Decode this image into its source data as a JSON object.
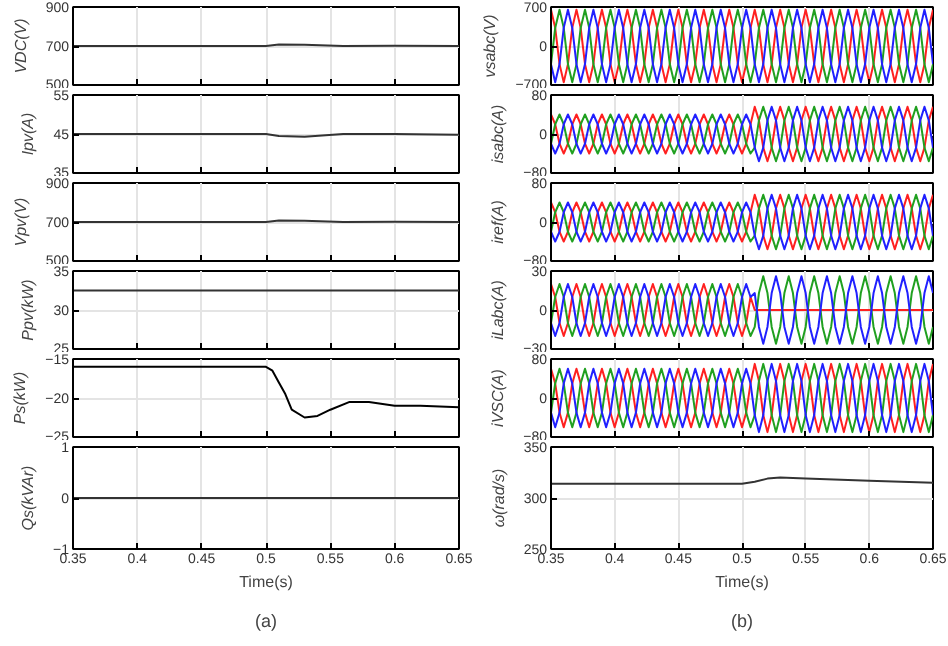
{
  "chart_data": [
    {
      "type": "line",
      "ylabel": "VDC(V)",
      "xlim": [
        0.35,
        0.65
      ],
      "xticks": [
        0.35,
        0.4,
        0.45,
        0.5,
        0.55,
        0.6,
        0.65
      ],
      "ylim": [
        500,
        900
      ],
      "yticks": [
        500,
        700,
        900
      ],
      "grid": true,
      "tick_labels": "y",
      "x": [
        0.35,
        0.5,
        0.51,
        0.53,
        0.56,
        0.6,
        0.65
      ],
      "series": [
        {
          "color": "#333333",
          "values": [
            700,
            700,
            708,
            706,
            700,
            701,
            700
          ]
        }
      ]
    },
    {
      "type": "line",
      "ylabel": "Ipv(A)",
      "xlim": [
        0.35,
        0.65
      ],
      "xticks": [
        0.35,
        0.4,
        0.45,
        0.5,
        0.55,
        0.6,
        0.65
      ],
      "ylim": [
        35,
        55
      ],
      "yticks": [
        35,
        45,
        55
      ],
      "grid": true,
      "tick_labels": "y",
      "x": [
        0.35,
        0.5,
        0.51,
        0.53,
        0.56,
        0.6,
        0.65
      ],
      "series": [
        {
          "color": "#333333",
          "values": [
            45,
            45,
            44.5,
            44.3,
            45,
            45,
            44.8
          ]
        }
      ]
    },
    {
      "type": "line",
      "ylabel": "Vpv(V)",
      "xlim": [
        0.35,
        0.65
      ],
      "xticks": [
        0.35,
        0.4,
        0.45,
        0.5,
        0.55,
        0.6,
        0.65
      ],
      "ylim": [
        500,
        900
      ],
      "yticks": [
        500,
        700,
        900
      ],
      "grid": true,
      "tick_labels": "y",
      "x": [
        0.35,
        0.5,
        0.51,
        0.53,
        0.56,
        0.6,
        0.65
      ],
      "series": [
        {
          "color": "#333333",
          "values": [
            700,
            700,
            708,
            706,
            700,
            701,
            700
          ]
        }
      ]
    },
    {
      "type": "line",
      "ylabel": "Ppv(kW)",
      "xlim": [
        0.35,
        0.65
      ],
      "xticks": [
        0.35,
        0.4,
        0.45,
        0.5,
        0.55,
        0.6,
        0.65
      ],
      "ylim": [
        25,
        35
      ],
      "yticks": [
        25,
        30,
        35
      ],
      "grid": true,
      "tick_labels": "y",
      "x": [
        0.35,
        0.65
      ],
      "series": [
        {
          "color": "#333333",
          "values": [
            32.5,
            32.5
          ]
        }
      ]
    },
    {
      "type": "line",
      "ylabel": "Ps(kW)",
      "xlim": [
        0.35,
        0.65
      ],
      "xticks": [
        0.35,
        0.4,
        0.45,
        0.5,
        0.55,
        0.6,
        0.65
      ],
      "ylim": [
        -25,
        -15
      ],
      "yticks": [
        -25,
        -20,
        -15
      ],
      "grid": true,
      "tick_labels": "y",
      "x": [
        0.35,
        0.5,
        0.505,
        0.51,
        0.515,
        0.52,
        0.53,
        0.54,
        0.55,
        0.565,
        0.58,
        0.6,
        0.62,
        0.65
      ],
      "series": [
        {
          "color": "#000000",
          "values": [
            -16,
            -16,
            -16.5,
            -18,
            -19.5,
            -21.5,
            -22.5,
            -22.3,
            -21.5,
            -20.5,
            -20.5,
            -21,
            -21,
            -21.2
          ]
        }
      ]
    },
    {
      "type": "line",
      "ylabel": "Qs(kVAr)",
      "xlabel": "Time(s)",
      "annotations": [
        "(a)"
      ],
      "xlim": [
        0.35,
        0.65
      ],
      "xticks": [
        0.35,
        0.4,
        0.45,
        0.5,
        0.55,
        0.6,
        0.65
      ],
      "ylim": [
        -1,
        1
      ],
      "yticks": [
        -1,
        0,
        1
      ],
      "grid": true,
      "x": [
        0.35,
        0.65
      ],
      "series": [
        {
          "color": "#333333",
          "values": [
            0,
            0
          ]
        }
      ]
    },
    {
      "type": "line",
      "ylabel": "vsabc(V)",
      "xlim": [
        0.35,
        0.65
      ],
      "xticks": [
        0.35,
        0.4,
        0.45,
        0.5,
        0.55,
        0.6,
        0.65
      ],
      "ylim": [
        -700,
        700
      ],
      "yticks": [
        -700,
        0,
        700
      ],
      "grid": true,
      "tick_labels": "y",
      "x": [
        0.35,
        0.3533,
        0.3567,
        0.36,
        0.3633,
        0.3667,
        0.37,
        0.3733,
        0.3767,
        0.38,
        0.3833,
        0.3867,
        0.39,
        0.3933,
        0.3967,
        0.4,
        0.4033,
        0.4067,
        0.41,
        0.4133,
        0.4167,
        0.42,
        0.4233,
        0.4267,
        0.43,
        0.4333,
        0.4367,
        0.44,
        0.4433,
        0.4467,
        0.45,
        0.4533,
        0.4567,
        0.46,
        0.4633,
        0.4667,
        0.47,
        0.4733,
        0.4767,
        0.48,
        0.4833,
        0.4867,
        0.49,
        0.4933,
        0.4967,
        0.5,
        0.5033,
        0.5067,
        0.51,
        0.5133,
        0.5167,
        0.52,
        0.5233,
        0.5267,
        0.53,
        0.5333,
        0.5367,
        0.54,
        0.5433,
        0.5467,
        0.55,
        0.5533,
        0.5567,
        0.56,
        0.5633,
        0.5667,
        0.57,
        0.5733,
        0.5767,
        0.58,
        0.5833,
        0.5867,
        0.59,
        0.5933,
        0.5967,
        0.6,
        0.6033,
        0.6067,
        0.61,
        0.6133,
        0.6167,
        0.62,
        0.6233,
        0.6267,
        0.63,
        0.6333,
        0.6367,
        0.64,
        0.6433,
        0.6467,
        0.65
      ],
      "series": [
        {
          "color": "#ff2020",
          "values": [
            650,
            325,
            -325,
            -650,
            -325,
            325,
            650,
            325,
            -325,
            -650,
            -325,
            325,
            650,
            325,
            -325,
            -650,
            -325,
            325,
            650,
            325,
            -325,
            -650,
            -325,
            325,
            650,
            325,
            -325,
            -650,
            -325,
            325,
            650,
            325,
            -325,
            -650,
            -325,
            325,
            650,
            325,
            -325,
            -650,
            -325,
            325,
            650,
            325,
            -325,
            -650,
            -325,
            325,
            650,
            325,
            -325,
            -650,
            -325,
            325,
            650,
            325,
            -325,
            -650,
            -325,
            325,
            650,
            325,
            -325,
            -650,
            -325,
            325,
            650,
            325,
            -325,
            -650,
            -325,
            325,
            650,
            325,
            -325,
            -650,
            -325,
            325,
            650,
            325,
            -325,
            -650,
            -325,
            325,
            650,
            325,
            -325,
            -650,
            -325,
            325,
            650
          ]
        },
        {
          "color": "#20a020",
          "values": [
            -325,
            325,
            650,
            325,
            -325,
            -650,
            -325,
            325,
            650,
            325,
            -325,
            -650,
            -325,
            325,
            650,
            325,
            -325,
            -650,
            -325,
            325,
            650,
            325,
            -325,
            -650,
            -325,
            325,
            650,
            325,
            -325,
            -650,
            -325,
            325,
            650,
            325,
            -325,
            -650,
            -325,
            325,
            650,
            325,
            -325,
            -650,
            -325,
            325,
            650,
            325,
            -325,
            -650,
            -325,
            325,
            650,
            325,
            -325,
            -650,
            -325,
            325,
            650,
            325,
            -325,
            -650,
            -325,
            325,
            650,
            325,
            -325,
            -650,
            -325,
            325,
            650,
            325,
            -325,
            -650,
            -325,
            325,
            650,
            325,
            -325,
            -650,
            -325,
            325,
            650,
            325,
            -325,
            -650,
            -325,
            325,
            650,
            325,
            -325,
            -650,
            -325
          ]
        },
        {
          "color": "#2020ff",
          "values": [
            -325,
            -650,
            -325,
            325,
            650,
            325,
            -325,
            -650,
            -325,
            325,
            650,
            325,
            -325,
            -650,
            -325,
            325,
            650,
            325,
            -325,
            -650,
            -325,
            325,
            650,
            325,
            -325,
            -650,
            -325,
            325,
            650,
            325,
            -325,
            -650,
            -325,
            325,
            650,
            325,
            -325,
            -650,
            -325,
            325,
            650,
            325,
            -325,
            -650,
            -325,
            325,
            650,
            325,
            -325,
            -650,
            -325,
            325,
            650,
            325,
            -325,
            -650,
            -325,
            325,
            650,
            325,
            -325,
            -650,
            -325,
            325,
            650,
            325,
            -325,
            -650,
            -325,
            325,
            650,
            325,
            -325,
            -650,
            -325,
            325,
            650,
            325,
            -325,
            -650,
            -325,
            325,
            650,
            325,
            -325,
            -650,
            -325,
            325,
            650,
            325,
            -325
          ]
        }
      ]
    },
    {
      "type": "line",
      "ylabel": "isabc(A)",
      "xlim": [
        0.35,
        0.65
      ],
      "xticks": [
        0.35,
        0.4,
        0.45,
        0.5,
        0.55,
        0.6,
        0.65
      ],
      "ylim": [
        -80,
        80
      ],
      "yticks": [
        -80,
        0,
        80
      ],
      "grid": true,
      "tick_labels": "y",
      "x": [
        0.35,
        0.3533,
        0.3567,
        0.36,
        0.3633,
        0.3667,
        0.37,
        0.3733,
        0.3767,
        0.38,
        0.3833,
        0.3867,
        0.39,
        0.3933,
        0.3967,
        0.4,
        0.4033,
        0.4067,
        0.41,
        0.4133,
        0.4167,
        0.42,
        0.4233,
        0.4267,
        0.43,
        0.4333,
        0.4367,
        0.44,
        0.4433,
        0.4467,
        0.45,
        0.4533,
        0.4567,
        0.46,
        0.4633,
        0.4667,
        0.47,
        0.4733,
        0.4767,
        0.48,
        0.4833,
        0.4867,
        0.49,
        0.4933,
        0.4967,
        0.5,
        0.5033,
        0.5067,
        0.51,
        0.5133,
        0.5167,
        0.52,
        0.5233,
        0.5267,
        0.53,
        0.5333,
        0.5367,
        0.54,
        0.5433,
        0.5467,
        0.55,
        0.5533,
        0.5567,
        0.56,
        0.5633,
        0.5667,
        0.57,
        0.5733,
        0.5767,
        0.58,
        0.5833,
        0.5867,
        0.59,
        0.5933,
        0.5967,
        0.6,
        0.6033,
        0.6067,
        0.61,
        0.6133,
        0.6167,
        0.62,
        0.6233,
        0.6267,
        0.63,
        0.6333,
        0.6367,
        0.64,
        0.6433,
        0.6467,
        0.65
      ],
      "series": [
        {
          "color": "#ff2020",
          "values": [
            40,
            20,
            -20,
            -40,
            -20,
            20,
            40,
            20,
            -20,
            -40,
            -20,
            20,
            40,
            20,
            -20,
            -40,
            -20,
            20,
            40,
            20,
            -20,
            -40,
            -20,
            20,
            40,
            20,
            -20,
            -40,
            -20,
            20,
            40,
            20,
            -20,
            -40,
            -20,
            20,
            40,
            20,
            -20,
            -40,
            -20,
            20,
            40,
            20,
            -20,
            -40,
            -20,
            20,
            56,
            28,
            -28,
            -56,
            -28,
            28,
            56,
            28,
            -28,
            -56,
            -28,
            28,
            56,
            28,
            -28,
            -56,
            -28,
            28,
            56,
            28,
            -28,
            -56,
            -28,
            28,
            56,
            28,
            -28,
            -56,
            -28,
            28,
            56,
            28,
            -28,
            -56,
            -28,
            28,
            56,
            28,
            -28,
            -56,
            -28,
            28,
            56
          ]
        },
        {
          "color": "#20a020",
          "values": [
            -20,
            20,
            40,
            20,
            -20,
            -40,
            -20,
            20,
            40,
            20,
            -20,
            -40,
            -20,
            20,
            40,
            20,
            -20,
            -40,
            -20,
            20,
            40,
            20,
            -20,
            -40,
            -20,
            20,
            40,
            20,
            -20,
            -40,
            -20,
            20,
            40,
            20,
            -20,
            -40,
            -20,
            20,
            40,
            20,
            -20,
            -40,
            -20,
            20,
            40,
            20,
            -20,
            -40,
            -28,
            28,
            56,
            28,
            -28,
            -56,
            -28,
            28,
            56,
            28,
            -28,
            -56,
            -28,
            28,
            56,
            28,
            -28,
            -56,
            -28,
            28,
            56,
            28,
            -28,
            -56,
            -28,
            28,
            56,
            28,
            -28,
            -56,
            -28,
            28,
            56,
            28,
            -28,
            -56,
            -28,
            28,
            56,
            28,
            -28,
            -56,
            -28
          ]
        },
        {
          "color": "#2020ff",
          "values": [
            -20,
            -40,
            -20,
            20,
            40,
            20,
            -20,
            -40,
            -20,
            20,
            40,
            20,
            -20,
            -40,
            -20,
            20,
            40,
            20,
            -20,
            -40,
            -20,
            20,
            40,
            20,
            -20,
            -40,
            -20,
            20,
            40,
            20,
            -20,
            -40,
            -20,
            20,
            40,
            20,
            -20,
            -40,
            -20,
            20,
            40,
            20,
            -20,
            -40,
            -20,
            20,
            40,
            20,
            -28,
            -56,
            -28,
            28,
            56,
            28,
            -28,
            -56,
            -28,
            28,
            56,
            28,
            -28,
            -56,
            -28,
            28,
            56,
            28,
            -28,
            -56,
            -28,
            28,
            56,
            28,
            -28,
            -56,
            -28,
            28,
            56,
            28,
            -28,
            -56,
            -28,
            28,
            56,
            28,
            -28,
            -56,
            -28,
            28,
            56,
            28,
            -28
          ]
        }
      ]
    },
    {
      "type": "line",
      "ylabel": "iref(A)",
      "xlim": [
        0.35,
        0.65
      ],
      "xticks": [
        0.35,
        0.4,
        0.45,
        0.5,
        0.55,
        0.6,
        0.65
      ],
      "ylim": [
        -80,
        80
      ],
      "yticks": [
        -80,
        0,
        80
      ],
      "grid": true,
      "tick_labels": "y",
      "x": [
        0.35,
        0.3533,
        0.3567,
        0.36,
        0.3633,
        0.3667,
        0.37,
        0.3733,
        0.3767,
        0.38,
        0.3833,
        0.3867,
        0.39,
        0.3933,
        0.3967,
        0.4,
        0.4033,
        0.4067,
        0.41,
        0.4133,
        0.4167,
        0.42,
        0.4233,
        0.4267,
        0.43,
        0.4333,
        0.4367,
        0.44,
        0.4433,
        0.4467,
        0.45,
        0.4533,
        0.4567,
        0.46,
        0.4633,
        0.4667,
        0.47,
        0.4733,
        0.4767,
        0.48,
        0.4833,
        0.4867,
        0.49,
        0.4933,
        0.4967,
        0.5,
        0.5033,
        0.5067,
        0.51,
        0.5133,
        0.5167,
        0.52,
        0.5233,
        0.5267,
        0.53,
        0.5333,
        0.5367,
        0.54,
        0.5433,
        0.5467,
        0.55,
        0.5533,
        0.5567,
        0.56,
        0.5633,
        0.5667,
        0.57,
        0.5733,
        0.5767,
        0.58,
        0.5833,
        0.5867,
        0.59,
        0.5933,
        0.5967,
        0.6,
        0.6033,
        0.6067,
        0.61,
        0.6133,
        0.6167,
        0.62,
        0.6233,
        0.6267,
        0.63,
        0.6333,
        0.6367,
        0.64,
        0.6433,
        0.6467,
        0.65
      ],
      "series": [
        {
          "color": "#ff2020",
          "values": [
            40,
            20,
            -20,
            -40,
            -20,
            20,
            40,
            20,
            -20,
            -40,
            -20,
            20,
            40,
            20,
            -20,
            -40,
            -20,
            20,
            40,
            20,
            -20,
            -40,
            -20,
            20,
            40,
            20,
            -20,
            -40,
            -20,
            20,
            40,
            20,
            -20,
            -40,
            -20,
            20,
            40,
            20,
            -20,
            -40,
            -20,
            20,
            40,
            20,
            -20,
            -40,
            -20,
            20,
            56,
            28,
            -28,
            -56,
            -28,
            28,
            56,
            28,
            -28,
            -56,
            -28,
            28,
            56,
            28,
            -28,
            -56,
            -28,
            28,
            56,
            28,
            -28,
            -56,
            -28,
            28,
            56,
            28,
            -28,
            -56,
            -28,
            28,
            56,
            28,
            -28,
            -56,
            -28,
            28,
            56,
            28,
            -28,
            -56,
            -28,
            28,
            56
          ]
        },
        {
          "color": "#20a020",
          "values": [
            -20,
            20,
            40,
            20,
            -20,
            -40,
            -20,
            20,
            40,
            20,
            -20,
            -40,
            -20,
            20,
            40,
            20,
            -20,
            -40,
            -20,
            20,
            40,
            20,
            -20,
            -40,
            -20,
            20,
            40,
            20,
            -20,
            -40,
            -20,
            20,
            40,
            20,
            -20,
            -40,
            -20,
            20,
            40,
            20,
            -20,
            -40,
            -20,
            20,
            40,
            20,
            -20,
            -40,
            -28,
            28,
            56,
            28,
            -28,
            -56,
            -28,
            28,
            56,
            28,
            -28,
            -56,
            -28,
            28,
            56,
            28,
            -28,
            -56,
            -28,
            28,
            56,
            28,
            -28,
            -56,
            -28,
            28,
            56,
            28,
            -28,
            -56,
            -28,
            28,
            56,
            28,
            -28,
            -56,
            -28,
            28,
            56,
            28,
            -28,
            -56,
            -28
          ]
        },
        {
          "color": "#2020ff",
          "values": [
            -20,
            -40,
            -20,
            20,
            40,
            20,
            -20,
            -40,
            -20,
            20,
            40,
            20,
            -20,
            -40,
            -20,
            20,
            40,
            20,
            -20,
            -40,
            -20,
            20,
            40,
            20,
            -20,
            -40,
            -20,
            20,
            40,
            20,
            -20,
            -40,
            -20,
            20,
            40,
            20,
            -20,
            -40,
            -20,
            20,
            40,
            20,
            -20,
            -40,
            -20,
            20,
            40,
            20,
            -28,
            -56,
            -28,
            28,
            56,
            28,
            -28,
            -56,
            -28,
            28,
            56,
            28,
            -28,
            -56,
            -28,
            28,
            56,
            28,
            -28,
            -56,
            -28,
            28,
            56,
            28,
            -28,
            -56,
            -28,
            28,
            56,
            28,
            -28,
            -56,
            -28,
            28,
            56,
            28,
            -28,
            -56,
            -28,
            28,
            56,
            28,
            -28
          ]
        }
      ]
    },
    {
      "type": "line",
      "ylabel": "iLabc(A)",
      "xlim": [
        0.35,
        0.65
      ],
      "xticks": [
        0.35,
        0.4,
        0.45,
        0.5,
        0.55,
        0.6,
        0.65
      ],
      "ylim": [
        -30,
        30
      ],
      "yticks": [
        -30,
        0,
        30
      ],
      "grid": true,
      "tick_labels": "y",
      "x": [
        0.35,
        0.3533,
        0.3567,
        0.36,
        0.3633,
        0.3667,
        0.37,
        0.3733,
        0.3767,
        0.38,
        0.3833,
        0.3867,
        0.39,
        0.3933,
        0.3967,
        0.4,
        0.4033,
        0.4067,
        0.41,
        0.4133,
        0.4167,
        0.42,
        0.4233,
        0.4267,
        0.43,
        0.4333,
        0.4367,
        0.44,
        0.4433,
        0.4467,
        0.45,
        0.4533,
        0.4567,
        0.46,
        0.4633,
        0.4667,
        0.47,
        0.4733,
        0.4767,
        0.48,
        0.4833,
        0.4867,
        0.49,
        0.4933,
        0.4967,
        0.5,
        0.5033,
        0.5067,
        0.51,
        0.5133,
        0.5167,
        0.52,
        0.5233,
        0.5267,
        0.53,
        0.5333,
        0.5367,
        0.54,
        0.5433,
        0.5467,
        0.55,
        0.5533,
        0.5567,
        0.56,
        0.5633,
        0.5667,
        0.57,
        0.5733,
        0.5767,
        0.58,
        0.5833,
        0.5867,
        0.59,
        0.5933,
        0.5967,
        0.6,
        0.6033,
        0.6067,
        0.61,
        0.6133,
        0.6167,
        0.62,
        0.6233,
        0.6267,
        0.63,
        0.6333,
        0.6367,
        0.64,
        0.6433,
        0.6467,
        0.65
      ],
      "series": [
        {
          "color": "#ff2020",
          "values": [
            20,
            10,
            -10,
            -20,
            -10,
            10,
            20,
            10,
            -10,
            -20,
            -10,
            10,
            20,
            10,
            -10,
            -20,
            -10,
            10,
            20,
            10,
            -10,
            -20,
            -10,
            10,
            20,
            10,
            -10,
            -20,
            -10,
            10,
            20,
            10,
            -10,
            -20,
            -10,
            10,
            20,
            10,
            -10,
            -20,
            -10,
            10,
            20,
            10,
            -10,
            -20,
            -10,
            10,
            0,
            0,
            0,
            0,
            0,
            0,
            0,
            0,
            0,
            0,
            0,
            0,
            0,
            0,
            0,
            0,
            0,
            0,
            0,
            0,
            0,
            0,
            0,
            0,
            0,
            0,
            0,
            0,
            0,
            0,
            0,
            0,
            0,
            0,
            0,
            0,
            0,
            0,
            0,
            0,
            0,
            0,
            0
          ]
        },
        {
          "color": "#20a020",
          "values": [
            -10,
            10,
            20,
            10,
            -10,
            -20,
            -10,
            10,
            20,
            10,
            -10,
            -20,
            -10,
            10,
            20,
            10,
            -10,
            -20,
            -10,
            10,
            20,
            10,
            -10,
            -20,
            -10,
            10,
            20,
            10,
            -10,
            -20,
            -10,
            10,
            20,
            10,
            -10,
            -20,
            -10,
            10,
            20,
            10,
            -10,
            -20,
            -10,
            10,
            20,
            10,
            -10,
            -20,
            -13,
            13,
            26,
            13,
            -13,
            -26,
            -13,
            13,
            26,
            13,
            -13,
            -26,
            -13,
            13,
            26,
            13,
            -13,
            -26,
            -13,
            13,
            26,
            13,
            -13,
            -26,
            -13,
            13,
            26,
            13,
            -13,
            -26,
            -13,
            13,
            26,
            13,
            -13,
            -26,
            -13,
            13,
            26,
            13,
            -13,
            -26,
            -13
          ]
        },
        {
          "color": "#2020ff",
          "values": [
            -10,
            -20,
            -10,
            10,
            20,
            10,
            -10,
            -20,
            -10,
            10,
            20,
            10,
            -10,
            -20,
            -10,
            10,
            20,
            10,
            -10,
            -20,
            -10,
            10,
            20,
            10,
            -10,
            -20,
            -10,
            10,
            20,
            10,
            -10,
            -20,
            -10,
            10,
            20,
            10,
            -10,
            -20,
            -10,
            10,
            20,
            10,
            -10,
            -20,
            -10,
            10,
            20,
            10,
            13,
            -13,
            -26,
            -13,
            13,
            26,
            13,
            -13,
            -26,
            -13,
            13,
            26,
            13,
            -13,
            -26,
            -13,
            13,
            26,
            13,
            -13,
            -26,
            -13,
            13,
            26,
            13,
            -13,
            -26,
            -13,
            13,
            26,
            13,
            -13,
            -26,
            -13,
            13,
            26,
            13,
            -13,
            -26,
            -13,
            13,
            26,
            13
          ]
        }
      ]
    },
    {
      "type": "line",
      "ylabel": "iVSC(A)",
      "xlim": [
        0.35,
        0.65
      ],
      "xticks": [
        0.35,
        0.4,
        0.45,
        0.5,
        0.55,
        0.6,
        0.65
      ],
      "ylim": [
        -80,
        80
      ],
      "yticks": [
        -80,
        0,
        80
      ],
      "grid": true,
      "tick_labels": "y",
      "x": [
        0.35,
        0.3533,
        0.3567,
        0.36,
        0.3633,
        0.3667,
        0.37,
        0.3733,
        0.3767,
        0.38,
        0.3833,
        0.3867,
        0.39,
        0.3933,
        0.3967,
        0.4,
        0.4033,
        0.4067,
        0.41,
        0.4133,
        0.4167,
        0.42,
        0.4233,
        0.4267,
        0.43,
        0.4333,
        0.4367,
        0.44,
        0.4433,
        0.4467,
        0.45,
        0.4533,
        0.4567,
        0.46,
        0.4633,
        0.4667,
        0.47,
        0.4733,
        0.4767,
        0.48,
        0.4833,
        0.4867,
        0.49,
        0.4933,
        0.4967,
        0.5,
        0.5033,
        0.5067,
        0.51,
        0.5133,
        0.5167,
        0.52,
        0.5233,
        0.5267,
        0.53,
        0.5333,
        0.5367,
        0.54,
        0.5433,
        0.5467,
        0.55,
        0.5533,
        0.5567,
        0.56,
        0.5633,
        0.5667,
        0.57,
        0.5733,
        0.5767,
        0.58,
        0.5833,
        0.5867,
        0.59,
        0.5933,
        0.5967,
        0.6,
        0.6033,
        0.6067,
        0.61,
        0.6133,
        0.6167,
        0.62,
        0.6233,
        0.6267,
        0.63,
        0.6333,
        0.6367,
        0.64,
        0.6433,
        0.6467,
        0.65
      ],
      "series": [
        {
          "color": "#ff2020",
          "values": [
            60,
            30,
            -30,
            -60,
            -30,
            30,
            60,
            30,
            -30,
            -60,
            -30,
            30,
            60,
            30,
            -30,
            -60,
            -30,
            30,
            60,
            30,
            -30,
            -60,
            -30,
            30,
            60,
            30,
            -30,
            -60,
            -30,
            30,
            60,
            30,
            -30,
            -60,
            -30,
            30,
            60,
            30,
            -30,
            -60,
            -30,
            30,
            60,
            30,
            -30,
            -60,
            -30,
            30,
            70,
            35,
            -35,
            -70,
            -35,
            35,
            70,
            35,
            -35,
            -70,
            -35,
            35,
            70,
            35,
            -35,
            -70,
            -35,
            35,
            70,
            35,
            -35,
            -70,
            -35,
            35,
            70,
            35,
            -35,
            -70,
            -35,
            35,
            70,
            35,
            -35,
            -70,
            -35,
            35,
            70,
            35,
            -35,
            -70,
            -35,
            35,
            70
          ]
        },
        {
          "color": "#20a020",
          "values": [
            -30,
            30,
            60,
            30,
            -30,
            -60,
            -30,
            30,
            60,
            30,
            -30,
            -60,
            -30,
            30,
            60,
            30,
            -30,
            -60,
            -30,
            30,
            60,
            30,
            -30,
            -60,
            -30,
            30,
            60,
            30,
            -30,
            -60,
            -30,
            30,
            60,
            30,
            -30,
            -60,
            -30,
            30,
            60,
            30,
            -30,
            -60,
            -30,
            30,
            60,
            30,
            -30,
            -60,
            -35,
            35,
            70,
            35,
            -35,
            -70,
            -35,
            35,
            70,
            35,
            -35,
            -70,
            -35,
            35,
            70,
            35,
            -35,
            -70,
            -35,
            35,
            70,
            35,
            -35,
            -70,
            -35,
            35,
            70,
            35,
            -35,
            -70,
            -35,
            35,
            70,
            35,
            -35,
            -70,
            -35,
            35,
            70,
            35,
            -35,
            -70,
            -35
          ]
        },
        {
          "color": "#2020ff",
          "values": [
            -30,
            -60,
            -30,
            30,
            60,
            30,
            -30,
            -60,
            -30,
            30,
            60,
            30,
            -30,
            -60,
            -30,
            30,
            60,
            30,
            -30,
            -60,
            -30,
            30,
            60,
            30,
            -30,
            -60,
            -30,
            30,
            60,
            30,
            -30,
            -60,
            -30,
            30,
            60,
            30,
            -30,
            -60,
            -30,
            30,
            60,
            30,
            -30,
            -60,
            -30,
            30,
            60,
            30,
            -35,
            -70,
            -35,
            35,
            70,
            35,
            -35,
            -70,
            -35,
            35,
            70,
            35,
            -35,
            -70,
            -35,
            35,
            70,
            35,
            -35,
            -70,
            -35,
            35,
            70,
            35,
            -35,
            -70,
            -35,
            35,
            70,
            35,
            -35,
            -70,
            -35,
            35,
            70,
            35,
            -35,
            -70,
            -35,
            35,
            70,
            35,
            -35
          ]
        }
      ]
    },
    {
      "type": "line",
      "ylabel": "ω(rad/s)",
      "xlabel": "Time(s)",
      "annotations": [
        "(b)"
      ],
      "xlim": [
        0.35,
        0.65
      ],
      "xticks": [
        0.35,
        0.4,
        0.45,
        0.5,
        0.55,
        0.6,
        0.65
      ],
      "ylim": [
        250,
        350
      ],
      "yticks": [
        250,
        300,
        350
      ],
      "grid": true,
      "x": [
        0.35,
        0.5,
        0.51,
        0.52,
        0.53,
        0.55,
        0.6,
        0.65
      ],
      "series": [
        {
          "color": "#333333",
          "values": [
            314,
            314,
            316,
            319,
            320,
            319,
            317,
            315
          ]
        }
      ]
    }
  ]
}
